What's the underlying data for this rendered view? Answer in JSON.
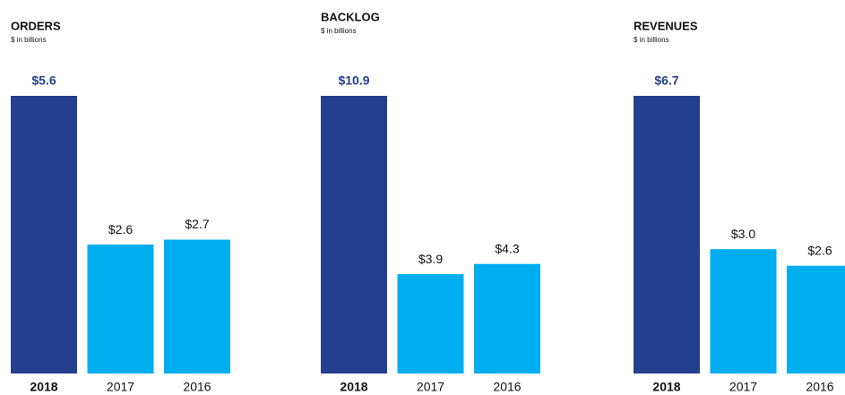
{
  "chart_data": [
    {
      "type": "bar",
      "title": "ORDERS",
      "subtitle": "$ in billions",
      "categories": [
        "2018",
        "2017",
        "2016"
      ],
      "values": [
        5.6,
        2.6,
        2.7
      ],
      "value_labels": [
        "$5.6",
        "$2.6",
        "$2.7"
      ],
      "colors": [
        "#253f8f",
        "#00aeef",
        "#00aeef"
      ]
    },
    {
      "type": "bar",
      "title": "BACKLOG",
      "subtitle": "$ in billions",
      "categories": [
        "2018",
        "2017",
        "2016"
      ],
      "values": [
        10.9,
        3.9,
        4.3
      ],
      "value_labels": [
        "$10.9",
        "$3.9",
        "$4.3"
      ],
      "colors": [
        "#253f8f",
        "#00aeef",
        "#00aeef"
      ]
    },
    {
      "type": "bar",
      "title": "REVENUES",
      "subtitle": "$ in billions",
      "categories": [
        "2018",
        "2017",
        "2016"
      ],
      "values": [
        6.7,
        3.0,
        2.6
      ],
      "value_labels": [
        "$6.7",
        "$3.0",
        "$2.6"
      ],
      "colors": [
        "#253f8f",
        "#00aeef",
        "#00aeef"
      ]
    }
  ]
}
